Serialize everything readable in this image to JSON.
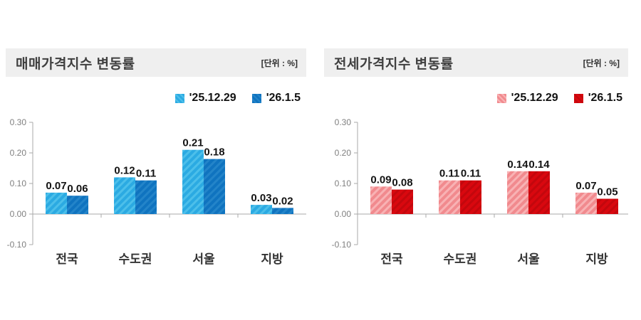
{
  "chart_data": [
    {
      "type": "bar",
      "title": "매매가격지수 변동률",
      "unit_label": "[단위 : %]",
      "categories": [
        "전국",
        "수도권",
        "서울",
        "지방"
      ],
      "series": [
        {
          "name": "'25.12.29",
          "values": [
            0.07,
            0.12,
            0.21,
            0.03
          ],
          "color": "#2BAAE2",
          "hatch_color": "#4CBFEA"
        },
        {
          "name": "'26.1.5",
          "values": [
            0.06,
            0.11,
            0.18,
            0.02
          ],
          "color": "#0F73BF",
          "hatch_color": "#2384C9"
        }
      ],
      "ylim": [
        -0.1,
        0.3
      ],
      "yticks": [
        "0.30",
        "0.20",
        "0.10",
        "0.00",
        "-0.10"
      ],
      "grid": false,
      "legend_position": "top-right",
      "value_labels": true,
      "xlabel": "",
      "ylabel": ""
    },
    {
      "type": "bar",
      "title": "전세가격지수 변동률",
      "unit_label": "[단위 : %]",
      "categories": [
        "전국",
        "수도권",
        "서울",
        "지방"
      ],
      "series": [
        {
          "name": "'25.12.29",
          "values": [
            0.09,
            0.11,
            0.14,
            0.07
          ],
          "color": "#F18A8E",
          "hatch_color": "#F8B2B4"
        },
        {
          "name": "'26.1.5",
          "values": [
            0.08,
            0.11,
            0.14,
            0.05
          ],
          "color": "#D9080F",
          "hatch_color": "#C3070D"
        }
      ],
      "ylim": [
        -0.1,
        0.3
      ],
      "yticks": [
        "0.30",
        "0.20",
        "0.10",
        "0.00",
        "-0.10"
      ],
      "grid": false,
      "legend_position": "top-right",
      "value_labels": true,
      "xlabel": "",
      "ylabel": ""
    }
  ],
  "colors": {
    "panel_header_bg": "#EFEFEF",
    "axis": "#A9A9A9",
    "tick_text": "#7F7F7F",
    "category_text": "#333333",
    "value_text": "#141414",
    "background": "#FFFFFF"
  }
}
